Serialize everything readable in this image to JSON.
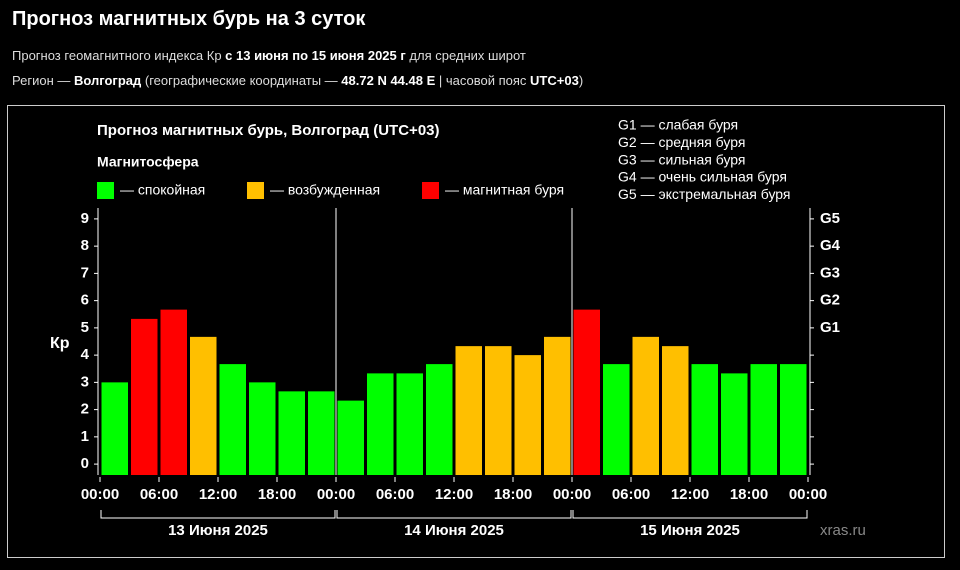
{
  "header": {
    "title": "Прогноз магнитных бурь на 3 суток",
    "subtitle": [
      "Прогноз геомагнитного индекса Кр ",
      "с 13 июня по 15 июня 2025 г",
      " для средних широт"
    ],
    "region": [
      "Регион — ",
      "Волгоград",
      " (географические координаты — ",
      "48.72 N 44.48 E",
      " | часовой пояс ",
      "UTC+03",
      ")"
    ]
  },
  "chart_data": {
    "type": "bar",
    "title": "Прогноз магнитных бурь, Волгоград (UTC+03)",
    "ylabel": "Кр",
    "watermark": "xras.ru",
    "legend_title": "Магнитосфера",
    "legend": [
      {
        "label": "— спокойная",
        "color": "#00ff00"
      },
      {
        "label": "— возбужденная",
        "color": "#ffbf00"
      },
      {
        "label": "— магнитная буря",
        "color": "#ff0000"
      }
    ],
    "storm_levels": [
      "G1 — слабая буря",
      "G2 — средняя буря",
      "G3 — сильная буря",
      "G4 — очень сильная буря",
      "G5 — экстремальная буря"
    ],
    "x": [
      1.5,
      4.5,
      7.5,
      10.5,
      13.5,
      16.5,
      19.5,
      22.5,
      25.5,
      28.5,
      31.5,
      34.5,
      37.5,
      40.5,
      43.5,
      46.5,
      49.5,
      52.5,
      55.5,
      58.5,
      61.5,
      64.5,
      67.5,
      70.5
    ],
    "bar_width": 3,
    "values": [
      3.0,
      5.33,
      5.67,
      4.67,
      3.67,
      3.0,
      2.67,
      2.67,
      2.33,
      3.33,
      3.33,
      3.67,
      4.33,
      4.33,
      4.0,
      4.67,
      5.67,
      3.67,
      4.67,
      4.33,
      3.67,
      3.33,
      3.67,
      3.67
    ],
    "colors": [
      "#00ff00",
      "#ff0000",
      "#ff0000",
      "#ffbf00",
      "#00ff00",
      "#00ff00",
      "#00ff00",
      "#00ff00",
      "#00ff00",
      "#00ff00",
      "#00ff00",
      "#00ff00",
      "#ffbf00",
      "#ffbf00",
      "#ffbf00",
      "#ffbf00",
      "#ff0000",
      "#00ff00",
      "#ffbf00",
      "#ffbf00",
      "#00ff00",
      "#00ff00",
      "#00ff00",
      "#00ff00"
    ],
    "xlim": [
      0,
      72
    ],
    "xticks": [
      {
        "value": 0,
        "label": "00:00"
      },
      {
        "value": 6,
        "label": "06:00"
      },
      {
        "value": 12,
        "label": "12:00"
      },
      {
        "value": 18,
        "label": "18:00"
      },
      {
        "value": 24,
        "label": "00:00"
      },
      {
        "value": 30,
        "label": "06:00"
      },
      {
        "value": 36,
        "label": "12:00"
      },
      {
        "value": 42,
        "label": "18:00"
      },
      {
        "value": 48,
        "label": "00:00"
      },
      {
        "value": 54,
        "label": "06:00"
      },
      {
        "value": 60,
        "label": "12:00"
      },
      {
        "value": 66,
        "label": "18:00"
      },
      {
        "value": 72,
        "label": "00:00"
      }
    ],
    "x_groups": [
      {
        "label": "13 Июня 2025",
        "start": 0,
        "end": 24
      },
      {
        "label": "14 Июня 2025",
        "start": 24,
        "end": 48
      },
      {
        "label": "15 Июня 2025",
        "start": 48,
        "end": 72
      }
    ],
    "ylim": [
      -0.4,
      9.4
    ],
    "yticks": [
      0,
      1,
      2,
      3,
      4,
      5,
      6,
      7,
      8,
      9
    ],
    "y2lim": [
      -0.4,
      9.4
    ],
    "y2ticks": [
      {
        "value": 5,
        "label": "G1"
      },
      {
        "value": 6,
        "label": "G2"
      },
      {
        "value": 7,
        "label": "G3"
      },
      {
        "value": 8,
        "label": "G4"
      },
      {
        "value": 9,
        "label": "G5"
      }
    ]
  }
}
